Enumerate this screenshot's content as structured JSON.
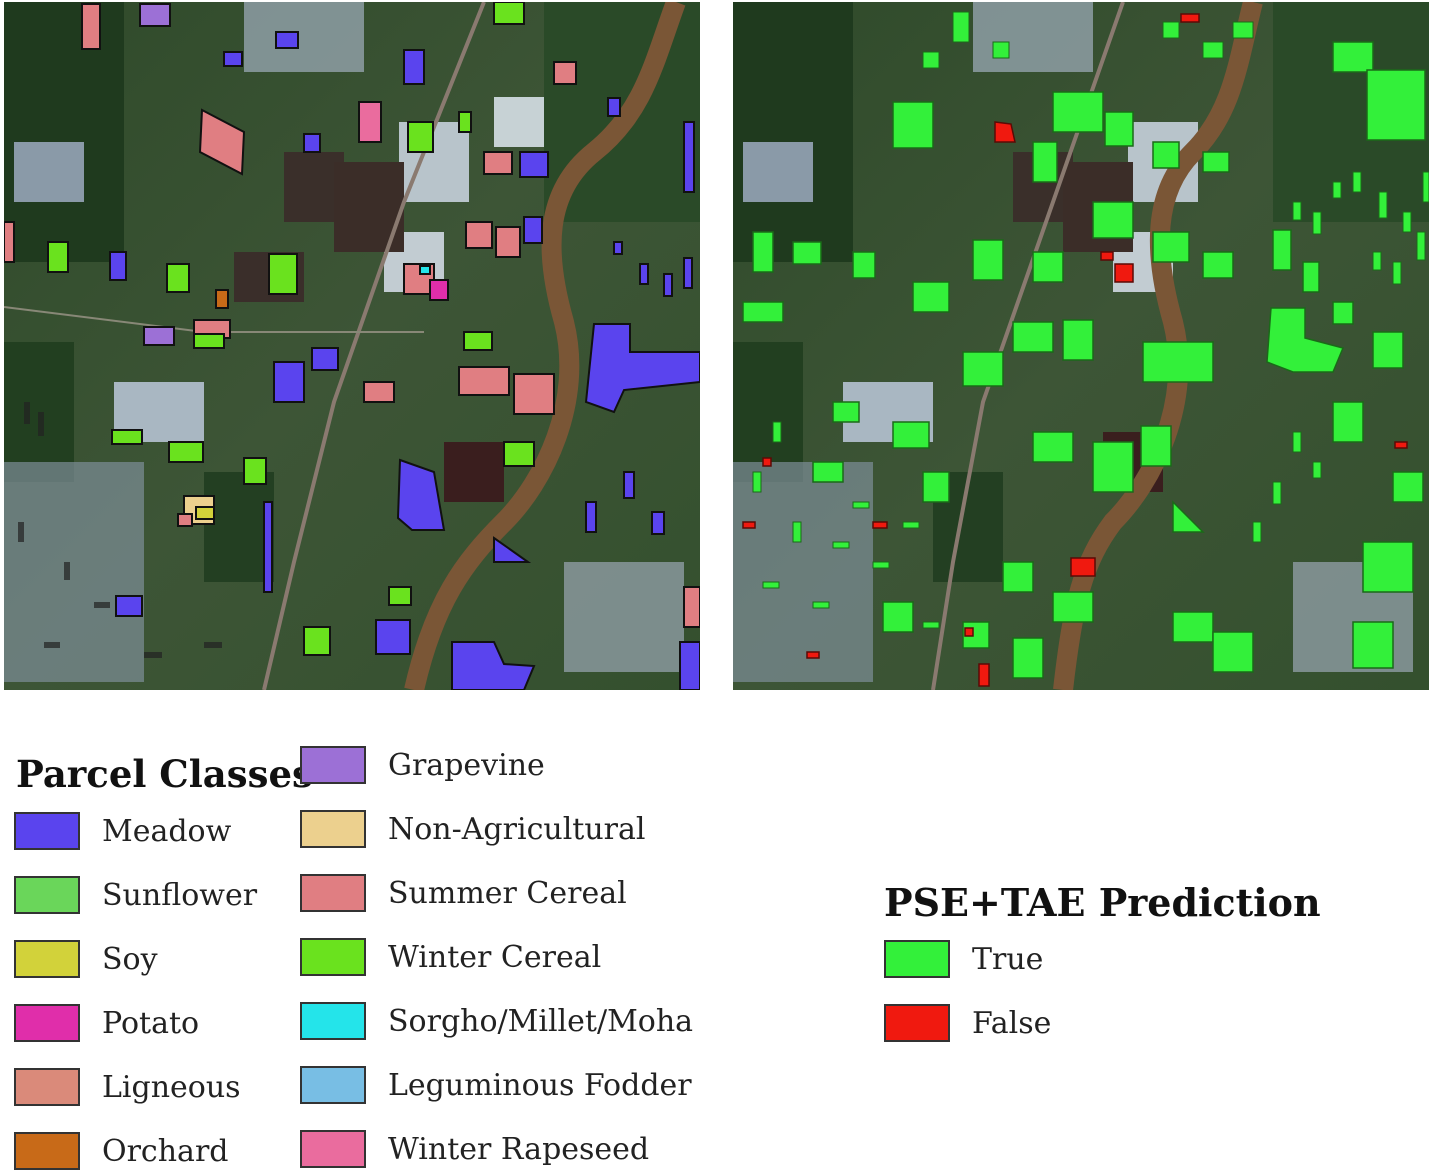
{
  "parcel_classes": {
    "title": "Parcel Classes",
    "items": [
      {
        "label": "Meadow",
        "color": "#5a44ee"
      },
      {
        "label": "Sunflower",
        "color": "#6ad65a"
      },
      {
        "label": "Soy",
        "color": "#d2d23a"
      },
      {
        "label": "Potato",
        "color": "#e02eaa"
      },
      {
        "label": "Ligneous",
        "color": "#da8a7a"
      },
      {
        "label": "Orchard",
        "color": "#c86a18"
      },
      {
        "label": "Grapevine",
        "color": "#9c70d6"
      },
      {
        "label": "Non-Agricultural",
        "color": "#ecd08e"
      },
      {
        "label": "Summer Cereal",
        "color": "#e07e82"
      },
      {
        "label": "Winter Cereal",
        "color": "#6ae21e"
      },
      {
        "label": "Sorgho/Millet/Moha",
        "color": "#24e4ea"
      },
      {
        "label": "Leguminous Fodder",
        "color": "#78bee4"
      },
      {
        "label": "Winter Rapeseed",
        "color": "#ea6c9e"
      }
    ]
  },
  "prediction": {
    "title": "PSE+TAE Prediction",
    "items": [
      {
        "label": "True",
        "color": "#33f03a"
      },
      {
        "label": "False",
        "color": "#f0190f"
      }
    ]
  }
}
